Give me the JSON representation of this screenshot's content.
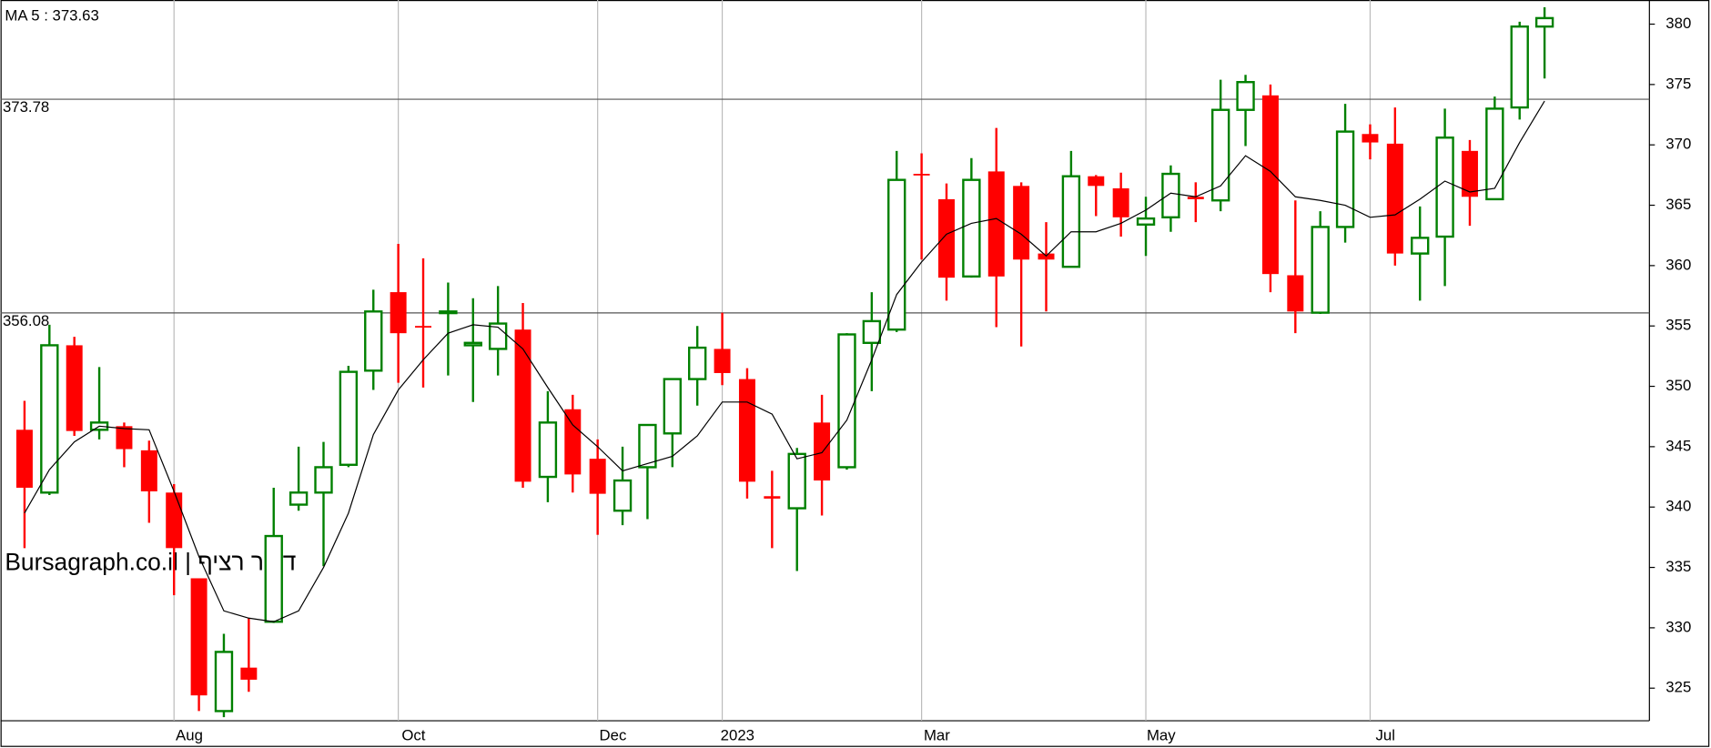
{
  "chart_data": {
    "type": "candlestick",
    "watermark": "Bursagraph.co.il | דולר רציף",
    "ma_label": "MA 5 : 373.63",
    "categories": [
      null,
      null,
      null,
      null,
      null,
      null,
      "Aug",
      null,
      null,
      null,
      null,
      null,
      null,
      null,
      null,
      "Oct",
      null,
      null,
      null,
      null,
      null,
      null,
      null,
      "Dec",
      null,
      null,
      null,
      null,
      "2023",
      null,
      null,
      null,
      null,
      null,
      null,
      null,
      "Mar",
      null,
      null,
      null,
      null,
      null,
      null,
      null,
      null,
      "May",
      null,
      null,
      null,
      null,
      null,
      null,
      null,
      null,
      "Jul",
      null,
      null,
      null,
      null,
      null,
      null,
      null
    ],
    "open": [
      346.4,
      341.2,
      353.4,
      346.4,
      346.7,
      344.7,
      341.2,
      334.1,
      323.1,
      326.7,
      330.5,
      340.2,
      341.2,
      343.5,
      351.3,
      357.8,
      355.0,
      356.1,
      353.4,
      353.1,
      354.7,
      342.5,
      348.1,
      344.0,
      339.7,
      343.3,
      346.1,
      350.6,
      353.1,
      350.6,
      340.9,
      339.9,
      347.0,
      343.3,
      353.6,
      354.7,
      367.6,
      365.5,
      359.1,
      367.8,
      366.6,
      361.0,
      359.9,
      367.4,
      366.4,
      363.4,
      364.0,
      365.7,
      365.4,
      372.9,
      374.1,
      359.2,
      356.1,
      363.2,
      370.9,
      370.1,
      361.0,
      362.4,
      369.5,
      365.5,
      373.1,
      379.8
    ],
    "high": [
      348.8,
      355.1,
      354.1,
      351.6,
      347.0,
      345.5,
      341.9,
      334.1,
      329.5,
      330.8,
      341.6,
      345.0,
      345.4,
      351.7,
      358.0,
      361.8,
      360.6,
      358.6,
      357.3,
      358.3,
      356.9,
      349.6,
      349.3,
      345.6,
      345.0,
      346.8,
      350.6,
      355.0,
      356.1,
      351.5,
      343.0,
      344.9,
      349.3,
      354.4,
      357.8,
      369.5,
      369.3,
      366.8,
      368.9,
      371.4,
      366.9,
      363.6,
      369.5,
      367.5,
      367.7,
      365.7,
      368.3,
      366.9,
      375.4,
      375.8,
      375.0,
      365.4,
      364.5,
      373.4,
      371.7,
      373.1,
      364.9,
      373.0,
      370.4,
      374.0,
      380.2,
      381.4
    ],
    "low": [
      336.6,
      341.0,
      345.9,
      345.6,
      343.3,
      338.7,
      332.7,
      323.1,
      322.6,
      324.7,
      330.4,
      339.7,
      335.1,
      343.3,
      349.7,
      350.3,
      349.9,
      350.9,
      348.7,
      350.9,
      341.6,
      340.4,
      341.2,
      337.7,
      338.5,
      339.0,
      343.3,
      348.4,
      350.1,
      340.7,
      336.6,
      334.7,
      339.3,
      343.1,
      349.6,
      354.5,
      360.5,
      357.1,
      359.0,
      354.9,
      353.3,
      356.2,
      359.9,
      364.1,
      362.4,
      360.8,
      362.8,
      363.6,
      364.5,
      369.9,
      357.8,
      354.4,
      356.0,
      361.9,
      368.8,
      360.0,
      357.1,
      358.3,
      363.3,
      365.5,
      372.1,
      375.5
    ],
    "close": [
      341.6,
      353.4,
      346.3,
      347.0,
      344.8,
      341.3,
      336.6,
      324.4,
      328.0,
      325.7,
      337.6,
      341.2,
      343.3,
      351.2,
      356.2,
      354.4,
      354.9,
      356.2,
      353.6,
      355.2,
      342.1,
      347.0,
      342.7,
      341.1,
      342.2,
      346.8,
      350.6,
      353.2,
      351.1,
      342.1,
      340.7,
      344.4,
      342.2,
      354.3,
      355.4,
      367.1,
      367.5,
      359.0,
      367.1,
      359.1,
      360.5,
      360.5,
      367.4,
      366.6,
      364.0,
      363.9,
      367.6,
      365.5,
      372.9,
      375.2,
      359.3,
      356.2,
      363.2,
      371.1,
      370.2,
      361.0,
      362.3,
      370.6,
      365.7,
      373.0,
      379.8,
      380.5
    ],
    "ma": [
      339.5,
      343.1,
      345.4,
      346.7,
      346.5,
      346.4,
      341.3,
      335.9,
      331.4,
      330.8,
      330.5,
      331.4,
      335.0,
      339.5,
      346.0,
      349.7,
      352.2,
      354.4,
      355.1,
      354.9,
      353.1,
      349.9,
      346.8,
      345.0,
      343.0,
      343.6,
      344.2,
      345.9,
      348.7,
      348.7,
      347.7,
      344.0,
      344.5,
      347.2,
      352.2,
      357.6,
      360.3,
      362.6,
      363.5,
      363.9,
      362.6,
      360.8,
      362.8,
      362.8,
      363.5,
      364.6,
      366.0,
      365.7,
      366.6,
      369.1,
      367.8,
      365.7,
      365.4,
      365.0,
      364.0,
      364.2,
      365.5,
      367.0,
      366.1,
      366.4,
      370.2,
      373.63
    ],
    "up_color": "#008000",
    "down_color": "#ff0000",
    "ma_color": "#000000",
    "hlines": [
      373.78,
      356.08
    ],
    "ylim": [
      322.3,
      382
    ],
    "yticks": [
      325,
      330,
      335,
      340,
      345,
      350,
      355,
      360,
      365,
      370,
      375,
      380
    ]
  }
}
